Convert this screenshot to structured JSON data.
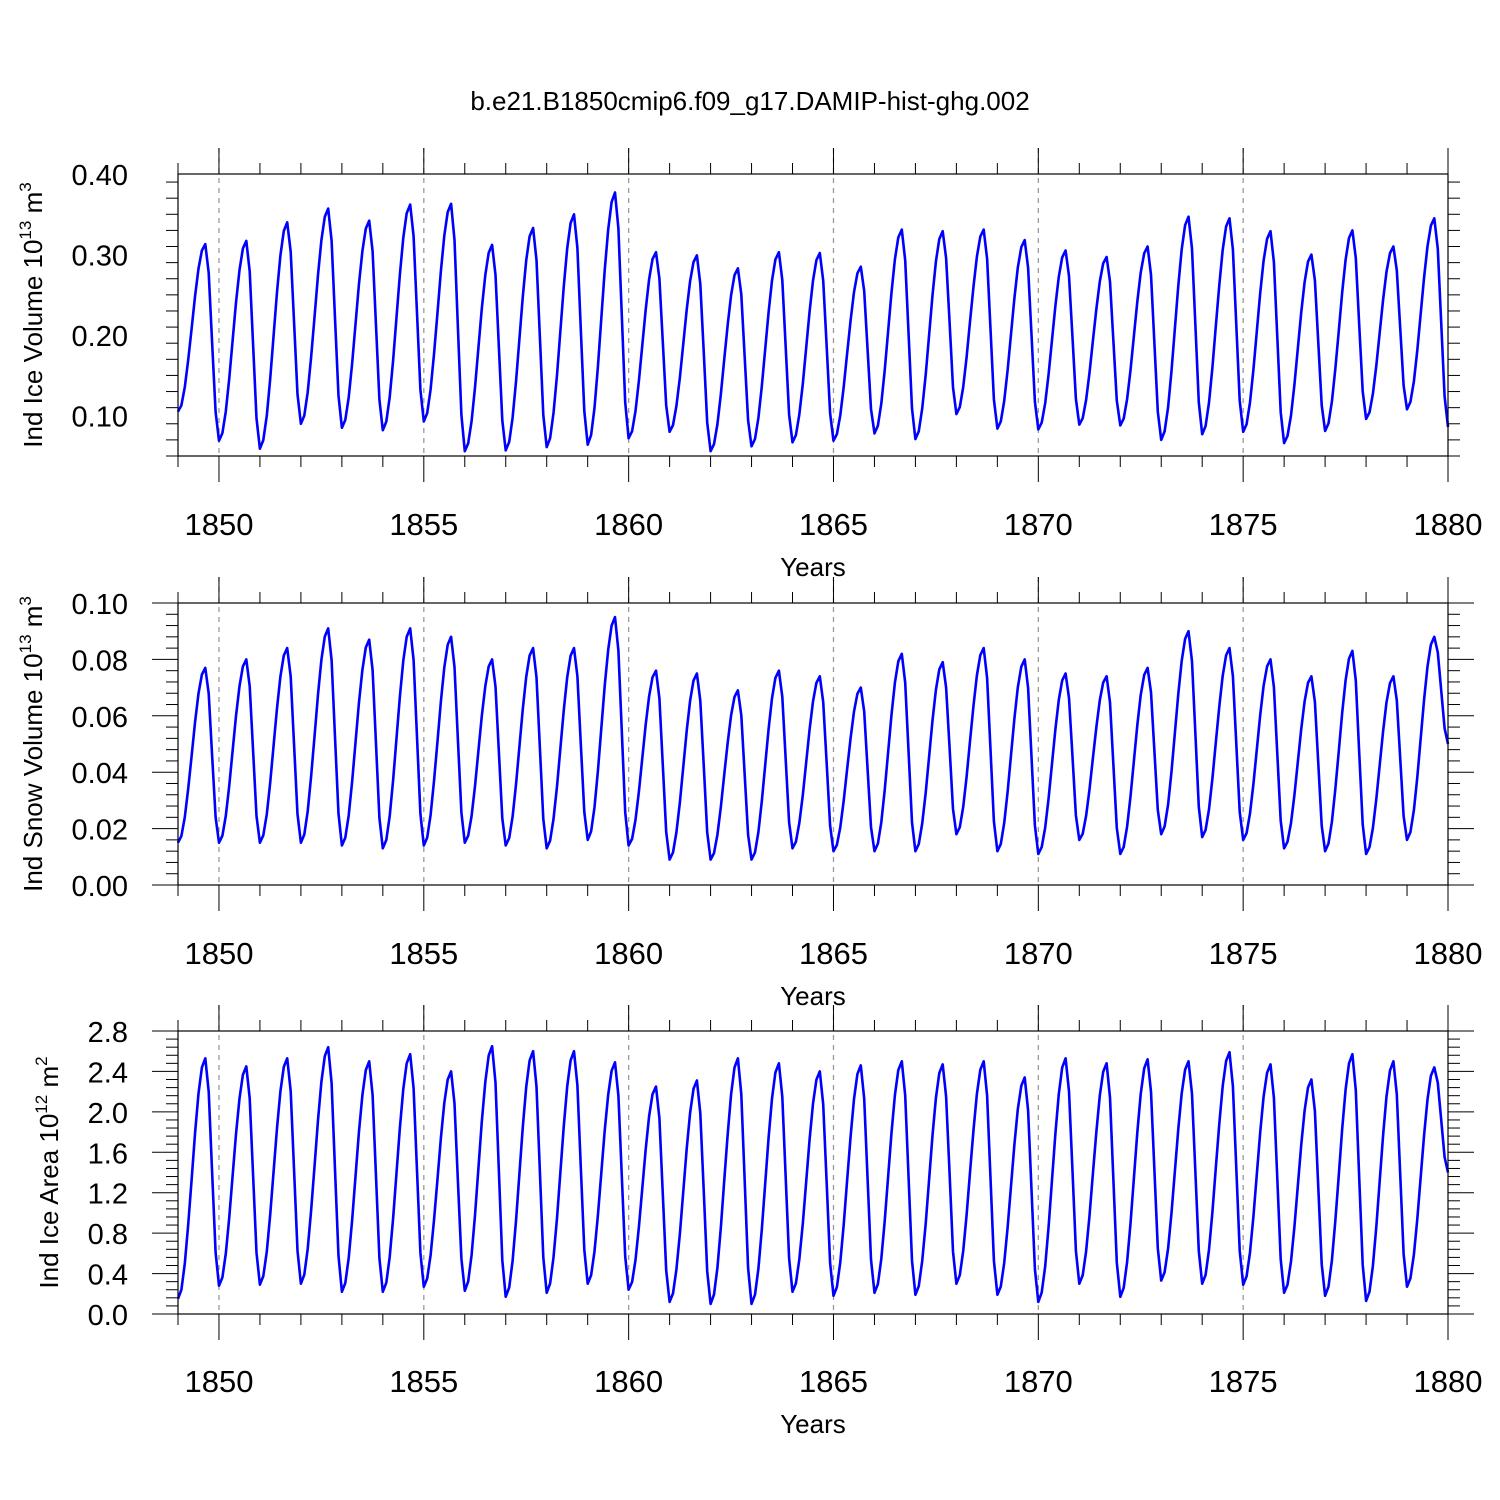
{
  "title": "b.e21.B1850cmip6.f09_g17.DAMIP-hist-ghg.002",
  "colors": {
    "series": "#0000ff",
    "axis": "#000000",
    "refline": "#9a9a9a"
  },
  "chart_data": [
    {
      "type": "line",
      "xlabel": "Years",
      "ylabel_main": "Ind Ice Volume 10",
      "ylabel_exp": "13",
      "ylabel_unit": " m",
      "ylabel_unit_exp": "3",
      "xlim": [
        1849.0,
        1880.0
      ],
      "ylim": [
        0.05,
        0.4
      ],
      "yticks": [
        0.1,
        0.2,
        0.3,
        0.4
      ],
      "ytick_labels": [
        "0.10",
        "0.20",
        "0.30",
        "0.40"
      ],
      "xticks": [
        1850,
        1855,
        1860,
        1865,
        1870,
        1875,
        1880
      ],
      "xtick_labels": [
        "1850",
        "1855",
        "1860",
        "1865",
        "1870",
        "1875",
        "1880"
      ],
      "ref_lines_x": [
        1850,
        1855,
        1860,
        1865,
        1870,
        1875
      ],
      "grid": false,
      "series": [
        {
          "year_min": [
            0.105,
            0.069,
            0.059,
            0.09,
            0.085,
            0.082,
            0.093,
            0.056,
            0.057,
            0.061,
            0.064,
            0.072,
            0.08,
            0.056,
            0.062,
            0.067,
            0.069,
            0.078,
            0.071,
            0.102,
            0.084,
            0.083,
            0.089,
            0.088,
            0.07,
            0.077,
            0.08,
            0.066,
            0.081,
            0.096,
            0.108,
            0.086
          ]
        }
      ],
      "series_max": [
        0.313,
        0.317,
        0.34,
        0.357,
        0.342,
        0.362,
        0.363,
        0.312,
        0.333,
        0.35,
        0.377,
        0.303,
        0.299,
        0.283,
        0.303,
        0.302,
        0.285,
        0.331,
        0.329,
        0.331,
        0.318,
        0.305,
        0.297,
        0.31,
        0.347,
        0.345,
        0.329,
        0.3,
        0.33,
        0.31,
        0.345
      ]
    },
    {
      "type": "line",
      "xlabel": "Years",
      "ylabel_main": "Ind Snow Volume 10",
      "ylabel_exp": "13",
      "ylabel_unit": " m",
      "ylabel_unit_exp": "3",
      "xlim": [
        1849.0,
        1880.0
      ],
      "ylim": [
        0.0,
        0.1
      ],
      "yticks": [
        0.0,
        0.02,
        0.04,
        0.06,
        0.08,
        0.1
      ],
      "ytick_labels": [
        "0.00",
        "0.02",
        "0.04",
        "0.06",
        "0.08",
        "0.10"
      ],
      "xticks": [
        1850,
        1855,
        1860,
        1865,
        1870,
        1875,
        1880
      ],
      "xtick_labels": [
        "1850",
        "1855",
        "1860",
        "1865",
        "1870",
        "1875",
        "1880"
      ],
      "ref_lines_x": [
        1850,
        1855,
        1860,
        1865,
        1870,
        1875
      ],
      "grid": false,
      "series": [
        {
          "year_min": [
            0.015,
            0.015,
            0.015,
            0.015,
            0.014,
            0.013,
            0.014,
            0.015,
            0.014,
            0.013,
            0.016,
            0.014,
            0.009,
            0.009,
            0.009,
            0.013,
            0.012,
            0.012,
            0.012,
            0.018,
            0.012,
            0.011,
            0.016,
            0.011,
            0.018,
            0.017,
            0.016,
            0.013,
            0.012,
            0.011,
            0.016,
            0.05
          ]
        }
      ],
      "series_max": [
        0.077,
        0.08,
        0.084,
        0.091,
        0.087,
        0.091,
        0.088,
        0.08,
        0.084,
        0.084,
        0.095,
        0.076,
        0.075,
        0.069,
        0.076,
        0.074,
        0.07,
        0.082,
        0.079,
        0.084,
        0.08,
        0.075,
        0.074,
        0.077,
        0.09,
        0.084,
        0.08,
        0.074,
        0.083,
        0.074,
        0.088
      ]
    },
    {
      "type": "line",
      "xlabel": "Years",
      "ylabel_main": "Ind Ice Area 10",
      "ylabel_exp": "12",
      "ylabel_unit": " m",
      "ylabel_unit_exp": "2",
      "xlim": [
        1849.0,
        1880.0
      ],
      "ylim": [
        0.0,
        2.8
      ],
      "yticks": [
        0.0,
        0.4,
        0.8,
        1.2,
        1.6,
        2.0,
        2.4,
        2.8
      ],
      "ytick_labels": [
        "0.0",
        "0.4",
        "0.8",
        "1.2",
        "1.6",
        "2.0",
        "2.4",
        "2.8"
      ],
      "xticks": [
        1850,
        1855,
        1860,
        1865,
        1870,
        1875,
        1880
      ],
      "xtick_labels": [
        "1850",
        "1855",
        "1860",
        "1865",
        "1870",
        "1875",
        "1880"
      ],
      "ref_lines_x": [
        1850,
        1855,
        1860,
        1865,
        1870,
        1875
      ],
      "grid": false,
      "series": [
        {
          "year_min": [
            0.15,
            0.28,
            0.29,
            0.3,
            0.22,
            0.22,
            0.27,
            0.23,
            0.17,
            0.21,
            0.3,
            0.24,
            0.12,
            0.1,
            0.1,
            0.22,
            0.18,
            0.21,
            0.19,
            0.3,
            0.19,
            0.12,
            0.3,
            0.17,
            0.33,
            0.3,
            0.29,
            0.21,
            0.18,
            0.13,
            0.27,
            1.4
          ]
        }
      ],
      "series_max": [
        2.53,
        2.45,
        2.53,
        2.64,
        2.5,
        2.57,
        2.4,
        2.65,
        2.6,
        2.6,
        2.49,
        2.25,
        2.31,
        2.53,
        2.48,
        2.4,
        2.46,
        2.5,
        2.47,
        2.5,
        2.34,
        2.53,
        2.48,
        2.52,
        2.5,
        2.59,
        2.47,
        2.32,
        2.57,
        2.5,
        2.44
      ]
    }
  ]
}
